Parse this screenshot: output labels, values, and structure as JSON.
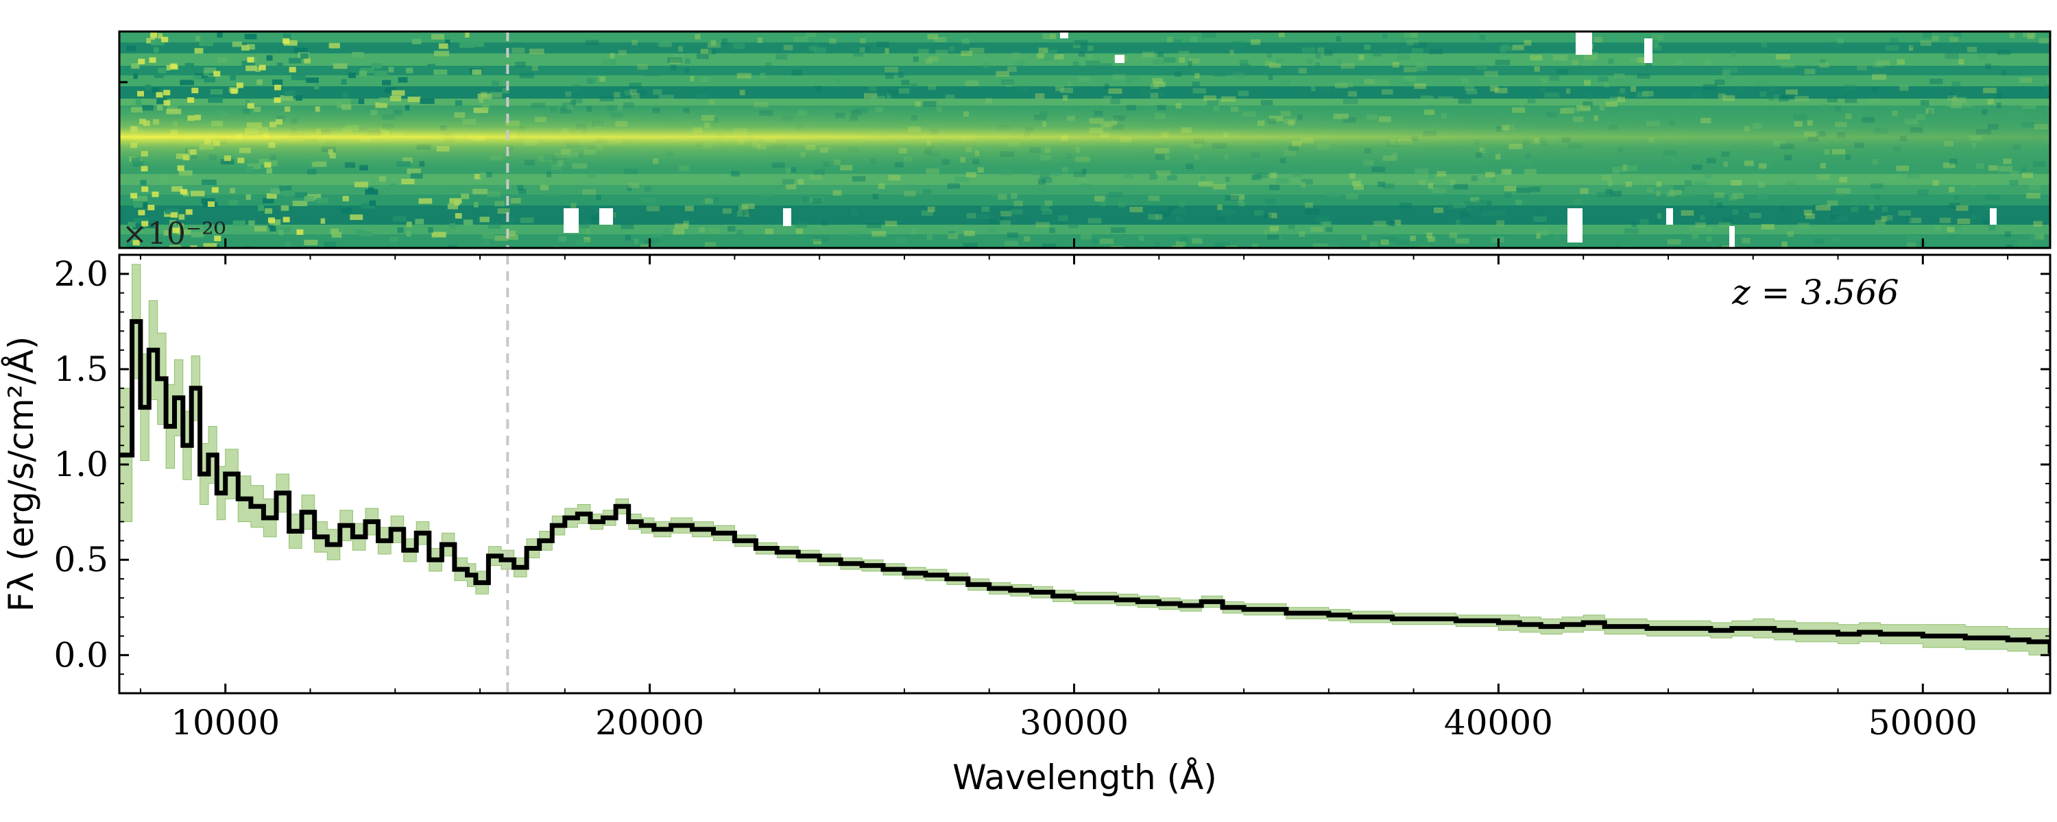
{
  "chart_data": [
    {
      "type": "heatmap",
      "panel": "2d-spectrum",
      "description_colormap": "viridis-like (dark teal to yellow)",
      "colors": {
        "low": "#0b7a66",
        "mid": "#4db06a",
        "high": "#f2f24a",
        "masked": "#ffffff"
      },
      "scale_label": "×10⁻²⁰",
      "trace_row_fraction": 0.47,
      "xlim": [
        7500,
        53000
      ]
    },
    {
      "type": "line",
      "panel": "1d-spectrum",
      "xlabel": "Wavelength (Å)",
      "ylabel": "Fλ (erg/s/cm²/Å)",
      "xlim": [
        7500,
        53000
      ],
      "ylim": [
        -0.2,
        2.1
      ],
      "xticks": [
        10000,
        20000,
        30000,
        40000,
        50000
      ],
      "xtick_labels": [
        "10000",
        "20000",
        "30000",
        "40000",
        "50000"
      ],
      "yticks": [
        0.0,
        0.5,
        1.0,
        1.5,
        2.0
      ],
      "ytick_labels": [
        "0.0",
        "0.5",
        "1.0",
        "1.5",
        "2.0"
      ],
      "annotation": "z = 3.566",
      "vline_wavelength": 16650,
      "colors": {
        "line": "#000000",
        "error_band": "#a9cf8a",
        "vline": "#c8c8c8"
      },
      "series": [
        {
          "name": "flux",
          "x": [
            7500,
            7800,
            8000,
            8200,
            8400,
            8600,
            8800,
            9000,
            9200,
            9400,
            9600,
            9800,
            10000,
            10300,
            10600,
            10900,
            11200,
            11500,
            11800,
            12100,
            12400,
            12700,
            13000,
            13300,
            13600,
            13900,
            14200,
            14500,
            14800,
            15100,
            15400,
            15700,
            15900,
            16200,
            16500,
            16800,
            17100,
            17400,
            17700,
            18000,
            18300,
            18600,
            18900,
            19200,
            19500,
            19800,
            20100,
            20500,
            21000,
            21500,
            22000,
            22500,
            23000,
            23500,
            24000,
            24500,
            25000,
            25500,
            26000,
            26500,
            27000,
            27500,
            28000,
            28500,
            29000,
            29500,
            30000,
            30500,
            31000,
            31500,
            32000,
            32500,
            33000,
            33500,
            34000,
            34500,
            35000,
            35500,
            36000,
            36500,
            37000,
            37500,
            38000,
            38500,
            39000,
            39500,
            40000,
            40500,
            41000,
            41500,
            42000,
            42500,
            43000,
            43500,
            44000,
            44500,
            45000,
            45500,
            46000,
            46500,
            47000,
            47500,
            48000,
            48500,
            49000,
            49500,
            50000,
            50500,
            51000,
            51500,
            52000,
            52500,
            53000
          ],
          "values": [
            1.05,
            1.75,
            1.3,
            1.6,
            1.45,
            1.2,
            1.35,
            1.1,
            1.4,
            0.95,
            1.05,
            0.85,
            0.95,
            0.82,
            0.78,
            0.72,
            0.85,
            0.65,
            0.75,
            0.62,
            0.58,
            0.68,
            0.62,
            0.7,
            0.6,
            0.66,
            0.55,
            0.64,
            0.5,
            0.58,
            0.45,
            0.42,
            0.38,
            0.52,
            0.5,
            0.46,
            0.56,
            0.6,
            0.68,
            0.72,
            0.74,
            0.7,
            0.72,
            0.78,
            0.7,
            0.68,
            0.66,
            0.68,
            0.66,
            0.64,
            0.6,
            0.56,
            0.54,
            0.52,
            0.5,
            0.48,
            0.47,
            0.45,
            0.43,
            0.42,
            0.4,
            0.37,
            0.35,
            0.34,
            0.33,
            0.31,
            0.3,
            0.3,
            0.29,
            0.28,
            0.27,
            0.26,
            0.28,
            0.25,
            0.24,
            0.24,
            0.22,
            0.22,
            0.21,
            0.2,
            0.2,
            0.19,
            0.19,
            0.19,
            0.18,
            0.18,
            0.17,
            0.16,
            0.15,
            0.16,
            0.17,
            0.15,
            0.15,
            0.14,
            0.14,
            0.14,
            0.13,
            0.14,
            0.14,
            0.13,
            0.12,
            0.12,
            0.11,
            0.12,
            0.11,
            0.11,
            0.1,
            0.1,
            0.09,
            0.09,
            0.08,
            0.07,
            0.02
          ],
          "errors": [
            0.35,
            0.3,
            0.28,
            0.26,
            0.24,
            0.22,
            0.2,
            0.18,
            0.17,
            0.16,
            0.15,
            0.14,
            0.13,
            0.12,
            0.11,
            0.1,
            0.1,
            0.09,
            0.09,
            0.08,
            0.08,
            0.08,
            0.07,
            0.07,
            0.07,
            0.07,
            0.06,
            0.06,
            0.06,
            0.06,
            0.06,
            0.06,
            0.06,
            0.05,
            0.05,
            0.05,
            0.05,
            0.05,
            0.05,
            0.05,
            0.05,
            0.04,
            0.04,
            0.04,
            0.04,
            0.04,
            0.04,
            0.04,
            0.04,
            0.04,
            0.03,
            0.03,
            0.03,
            0.03,
            0.03,
            0.03,
            0.03,
            0.03,
            0.03,
            0.03,
            0.03,
            0.03,
            0.03,
            0.03,
            0.03,
            0.03,
            0.03,
            0.03,
            0.03,
            0.03,
            0.03,
            0.03,
            0.03,
            0.03,
            0.03,
            0.03,
            0.03,
            0.03,
            0.03,
            0.03,
            0.03,
            0.03,
            0.03,
            0.03,
            0.03,
            0.03,
            0.04,
            0.04,
            0.04,
            0.04,
            0.04,
            0.04,
            0.04,
            0.04,
            0.04,
            0.04,
            0.04,
            0.04,
            0.05,
            0.05,
            0.05,
            0.05,
            0.05,
            0.05,
            0.05,
            0.05,
            0.06,
            0.06,
            0.06,
            0.06,
            0.06,
            0.07,
            0.08
          ]
        }
      ]
    }
  ]
}
